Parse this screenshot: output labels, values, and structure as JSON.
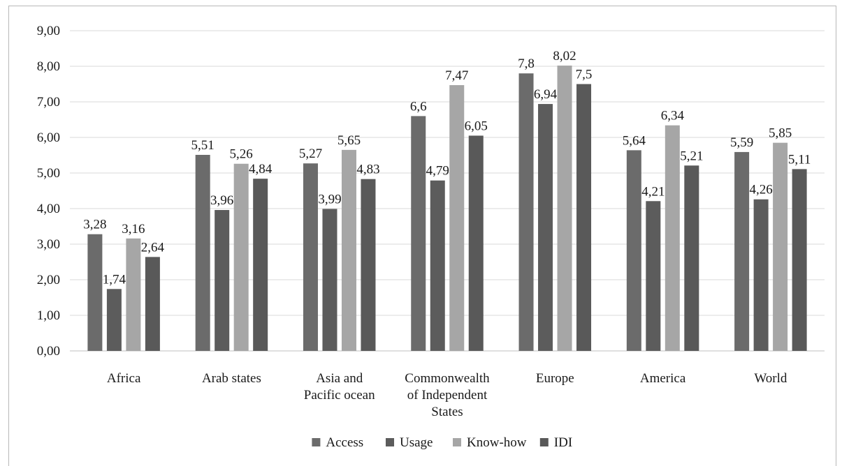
{
  "chart_data": {
    "type": "bar",
    "categories": [
      [
        "Africa"
      ],
      [
        "Arab states"
      ],
      [
        "Asia and",
        "Pacific ocean"
      ],
      [
        "Commonwealth",
        "of Independent",
        "States"
      ],
      [
        "Europe"
      ],
      [
        "America"
      ],
      [
        "World"
      ]
    ],
    "series": [
      {
        "name": "Access",
        "color": "#6b6b6b",
        "values": [
          3.28,
          5.51,
          5.27,
          6.6,
          7.8,
          5.64,
          5.59
        ],
        "labels": [
          "3,28",
          "5,51",
          "5,27",
          "6,6",
          "7,8",
          "5,64",
          "5,59"
        ]
      },
      {
        "name": "Usage",
        "color": "#5c5c5c",
        "values": [
          1.74,
          3.96,
          3.99,
          4.79,
          6.94,
          4.21,
          4.26
        ],
        "labels": [
          "1,74",
          "3,96",
          "3,99",
          "4,79",
          "6,94",
          "4,21",
          "4,26"
        ]
      },
      {
        "name": "Know-how",
        "color": "#a6a6a6",
        "values": [
          3.16,
          5.26,
          5.65,
          7.47,
          8.02,
          6.34,
          5.85
        ],
        "labels": [
          "3,16",
          "5,26",
          "5,65",
          "7,47",
          "8,02",
          "6,34",
          "5,85"
        ]
      },
      {
        "name": "IDI",
        "color": "#595959",
        "values": [
          2.64,
          4.84,
          4.83,
          6.05,
          7.5,
          5.21,
          5.11
        ],
        "labels": [
          "2,64",
          "4,84",
          "4,83",
          "6,05",
          "7,5",
          "5,21",
          "5,11"
        ]
      }
    ],
    "yticks": [
      "0,00",
      "1,00",
      "2,00",
      "3,00",
      "4,00",
      "5,00",
      "6,00",
      "7,00",
      "8,00",
      "9,00"
    ],
    "ylim": [
      0,
      9
    ],
    "grid": true,
    "legend": "bottom",
    "title": "",
    "xlabel": "",
    "ylabel": ""
  }
}
